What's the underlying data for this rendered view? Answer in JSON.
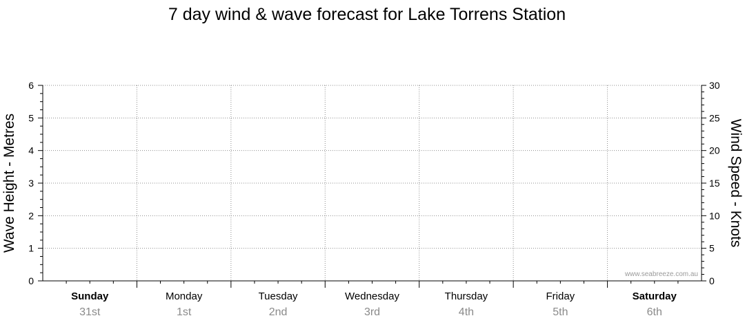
{
  "chart_data": {
    "type": "line",
    "title": "7 day wind & wave forecast for Lake Torrens Station",
    "ylabel": "Wave Height - Metres",
    "y2label": "Wind Speed - Knots",
    "ylim": [
      0,
      6
    ],
    "y2lim": [
      0,
      30
    ],
    "yticks": [
      "0",
      "1",
      "2",
      "3",
      "4",
      "5",
      "6"
    ],
    "y2ticks": [
      "0",
      "5",
      "10",
      "15",
      "20",
      "25",
      "30"
    ],
    "categories": [
      {
        "day": "Sunday",
        "date": "31st",
        "weekend": true
      },
      {
        "day": "Monday",
        "date": "1st",
        "weekend": false
      },
      {
        "day": "Tuesday",
        "date": "2nd",
        "weekend": false
      },
      {
        "day": "Wednesday",
        "date": "3rd",
        "weekend": false
      },
      {
        "day": "Thursday",
        "date": "4th",
        "weekend": false
      },
      {
        "day": "Friday",
        "date": "5th",
        "weekend": false
      },
      {
        "day": "Saturday",
        "date": "6th",
        "weekend": true
      }
    ],
    "series": [],
    "grid": true,
    "watermark": "www.seabreeze.com.au"
  }
}
